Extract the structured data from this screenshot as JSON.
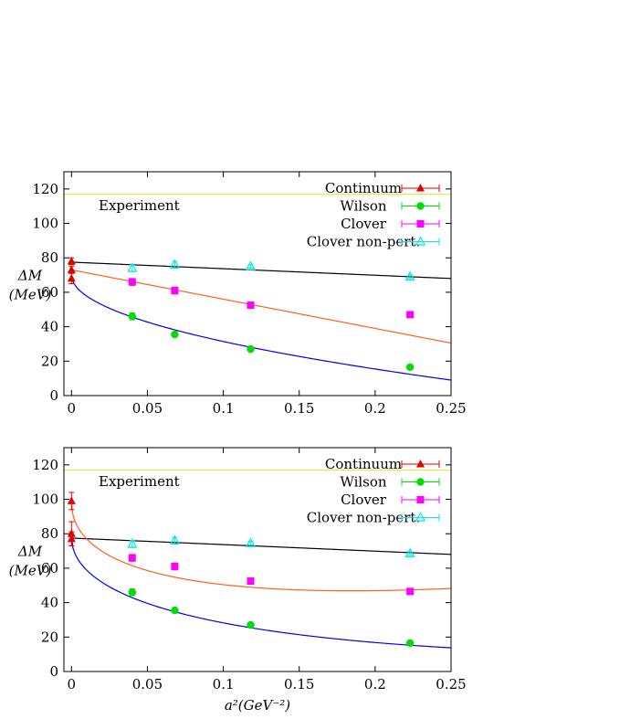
{
  "colors": {
    "experiment": "#e8e84a",
    "continuum": "#e00000",
    "wilson": "#00dd00",
    "clover": "#ff00ff",
    "clover_np": "#00e8e8",
    "fit_np": "#000000",
    "fit_clover": "#ff6020",
    "fit_wilson": "#0000ee"
  },
  "chart_data": [
    {
      "type": "scatter",
      "title": "",
      "xlabel": "",
      "ylabel_line1": "ΔM",
      "ylabel_line2": "(MeV)",
      "xlim": [
        -0.005,
        0.25
      ],
      "ylim": [
        0,
        130
      ],
      "x_ticks": [
        "0",
        "0.05",
        "0.1",
        "0.15",
        "0.2",
        "0.25"
      ],
      "y_ticks": [
        "0",
        "20",
        "40",
        "60",
        "80",
        "100",
        "120"
      ],
      "experiment_label": "Experiment",
      "experiment_value": 117,
      "legend_placement": "top-right",
      "series": [
        {
          "name": "Continuum",
          "marker": "filled-triangle",
          "color_key": "continuum",
          "points": [
            {
              "x": 0,
              "y": 78,
              "err": 2
            },
            {
              "x": 0,
              "y": 73,
              "err": 2
            },
            {
              "x": 0,
              "y": 68,
              "err": 3
            }
          ]
        },
        {
          "name": "Wilson",
          "marker": "filled-circle",
          "color_key": "wilson",
          "points": [
            {
              "x": 0.04,
              "y": 46,
              "err": 2
            },
            {
              "x": 0.068,
              "y": 35.5,
              "err": 1
            },
            {
              "x": 0.118,
              "y": 27,
              "err": 1
            },
            {
              "x": 0.223,
              "y": 16.5,
              "err": 1
            }
          ]
        },
        {
          "name": "Clover",
          "marker": "filled-square",
          "color_key": "clover",
          "points": [
            {
              "x": 0.04,
              "y": 66,
              "err": 2
            },
            {
              "x": 0.068,
              "y": 61,
              "err": 2
            },
            {
              "x": 0.118,
              "y": 52.5,
              "err": 1
            },
            {
              "x": 0.223,
              "y": 47,
              "err": 1
            }
          ]
        },
        {
          "name": "Clover non-pert.",
          "marker": "open-triangle",
          "color_key": "clover_np",
          "points": [
            {
              "x": 0.04,
              "y": 74,
              "err": 2
            },
            {
              "x": 0.068,
              "y": 76,
              "err": 2
            },
            {
              "x": 0.118,
              "y": 75,
              "err": 1
            },
            {
              "x": 0.223,
              "y": 69,
              "err": 1
            }
          ]
        }
      ],
      "fits": [
        {
          "color_key": "fit_np",
          "kind": "linear",
          "c0": 77.5,
          "c1": -38
        },
        {
          "color_key": "fit_clover",
          "kind": "linear",
          "c0": 73,
          "c1": -170
        },
        {
          "color_key": "fit_wilson",
          "kind": "sqrt",
          "c0": 70,
          "c1": -122
        }
      ]
    },
    {
      "type": "scatter",
      "title": "",
      "xlabel": "a²(GeV⁻²)",
      "ylabel_line1": "ΔM",
      "ylabel_line2": "(MeV)",
      "xlim": [
        -0.005,
        0.25
      ],
      "ylim": [
        0,
        130
      ],
      "x_ticks": [
        "0",
        "0.05",
        "0.1",
        "0.15",
        "0.2",
        "0.25"
      ],
      "y_ticks": [
        "0",
        "20",
        "40",
        "60",
        "80",
        "100",
        "120"
      ],
      "experiment_label": "Experiment",
      "experiment_value": 117,
      "legend_placement": "top-right",
      "series": [
        {
          "name": "Continuum",
          "marker": "filled-triangle",
          "color_key": "continuum",
          "points": [
            {
              "x": 0,
              "y": 99,
              "err": 5
            },
            {
              "x": 0,
              "y": 80,
              "err": 7
            },
            {
              "x": 0,
              "y": 77,
              "err": 4
            }
          ]
        },
        {
          "name": "Wilson",
          "marker": "filled-circle",
          "color_key": "wilson",
          "points": [
            {
              "x": 0.04,
              "y": 46,
              "err": 2
            },
            {
              "x": 0.068,
              "y": 35.5,
              "err": 1
            },
            {
              "x": 0.118,
              "y": 27,
              "err": 1
            },
            {
              "x": 0.223,
              "y": 16.5,
              "err": 1
            }
          ]
        },
        {
          "name": "Clover",
          "marker": "filled-square",
          "color_key": "clover",
          "points": [
            {
              "x": 0.04,
              "y": 66,
              "err": 2
            },
            {
              "x": 0.068,
              "y": 61,
              "err": 2
            },
            {
              "x": 0.118,
              "y": 52.5,
              "err": 1
            },
            {
              "x": 0.223,
              "y": 46.5,
              "err": 1
            }
          ]
        },
        {
          "name": "Clover non-pert.",
          "marker": "open-triangle",
          "color_key": "clover_np",
          "points": [
            {
              "x": 0.04,
              "y": 74,
              "err": 2
            },
            {
              "x": 0.068,
              "y": 76,
              "err": 2
            },
            {
              "x": 0.118,
              "y": 74.5,
              "err": 1
            },
            {
              "x": 0.223,
              "y": 68.5,
              "err": 1
            }
          ]
        }
      ],
      "fits": [
        {
          "color_key": "fit_np",
          "kind": "linear",
          "c0": 77.5,
          "c1": -38
        },
        {
          "color_key": "fit_clover",
          "kind": "sqrtquad",
          "c0": 98,
          "c1": -238,
          "c2": 277
        },
        {
          "color_key": "fit_wilson",
          "kind": "sqrtquad",
          "c0": 78,
          "c1": -207,
          "c2": 157
        }
      ]
    }
  ]
}
